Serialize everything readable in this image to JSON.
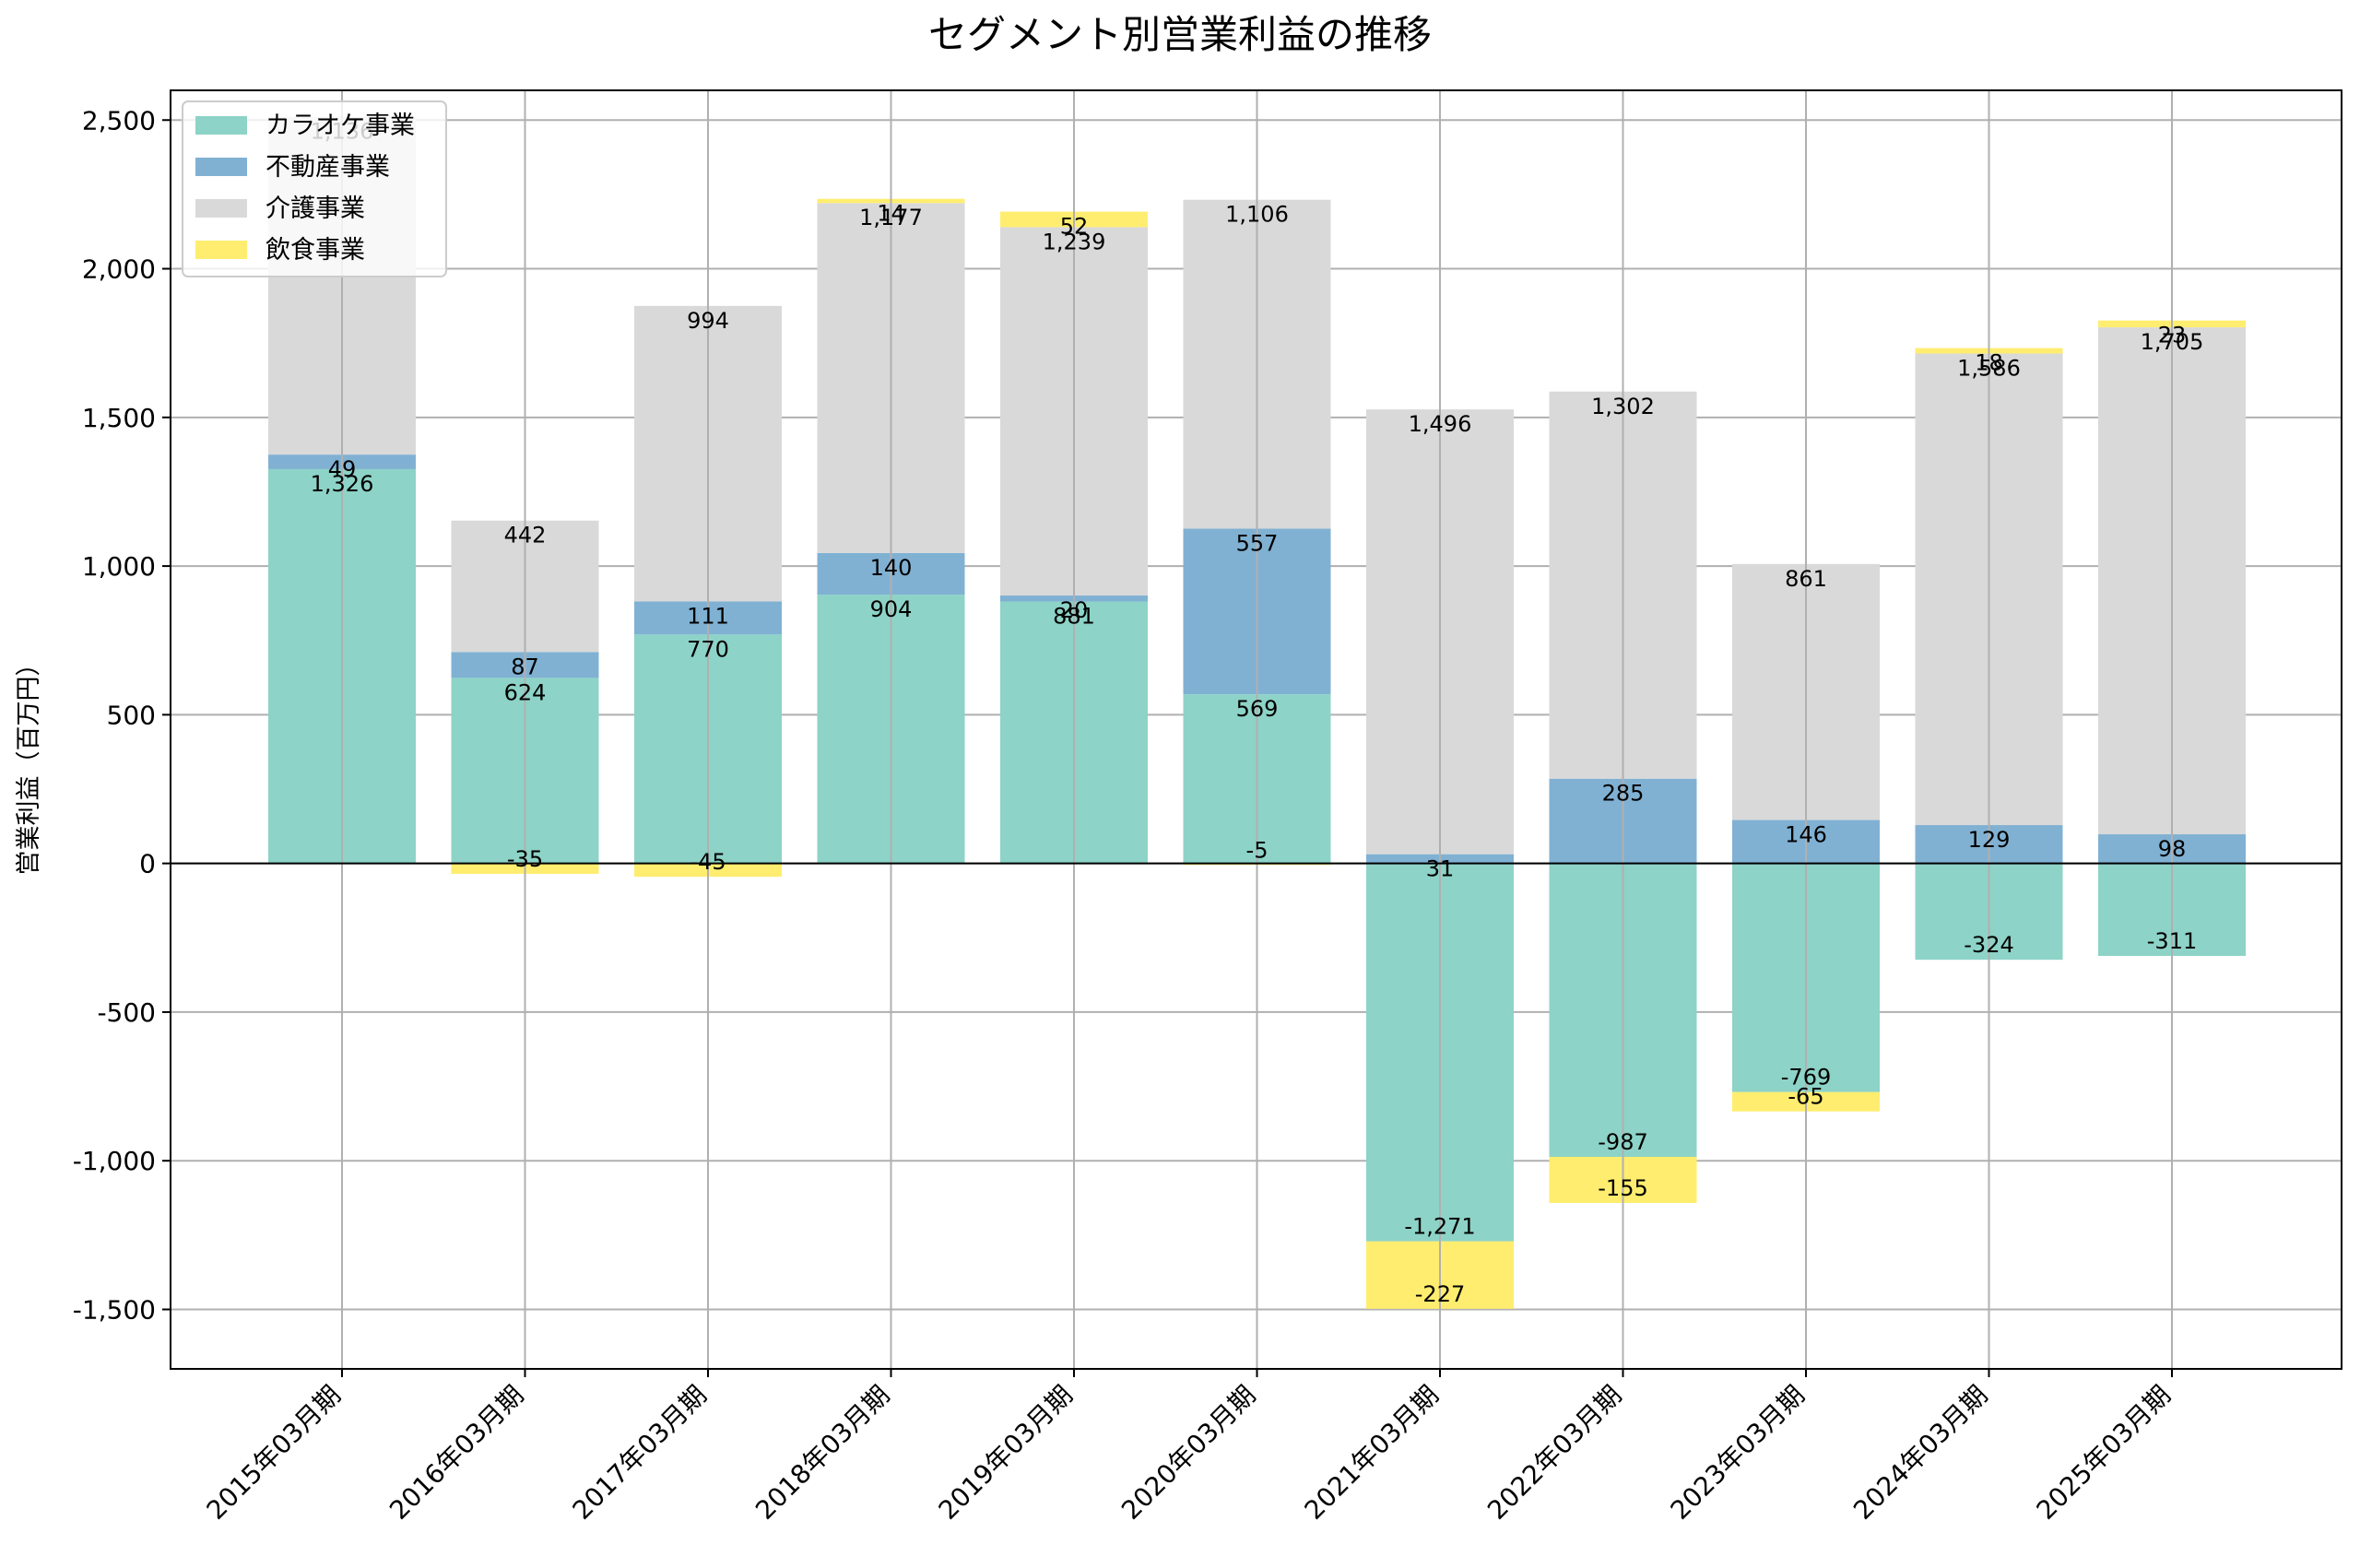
{
  "chart_data": {
    "type": "bar",
    "stacked": true,
    "title": "セグメント別営業利益の推移",
    "xlabel": "",
    "ylabel": "営業利益（百万円）",
    "ylim": [
      -1700,
      2600
    ],
    "yticks": [
      -1500,
      -1000,
      -500,
      0,
      500,
      1000,
      1500,
      2000,
      2500
    ],
    "ytick_labels": [
      "-1,500",
      "-1,000",
      "-500",
      "0",
      "500",
      "1,000",
      "1,500",
      "2,000",
      "2,500"
    ],
    "grid": true,
    "legend_position": "top-left",
    "categories": [
      "2015年03月期",
      "2016年03月期",
      "2017年03月期",
      "2018年03月期",
      "2019年03月期",
      "2020年03月期",
      "2021年03月期",
      "2022年03月期",
      "2023年03月期",
      "2024年03月期",
      "2025年03月期"
    ],
    "series": [
      {
        "name": "カラオケ事業",
        "color": "#8dd3c7",
        "values": [
          1326,
          624,
          770,
          904,
          881,
          569,
          -1271,
          -987,
          -769,
          -324,
          -311
        ]
      },
      {
        "name": "不動産事業",
        "color": "#80b1d3",
        "values": [
          49,
          87,
          111,
          140,
          20,
          557,
          31,
          285,
          146,
          129,
          98
        ]
      },
      {
        "name": "介護事業",
        "color": "#d9d9d9",
        "values": [
          1136,
          442,
          994,
          1177,
          1239,
          1106,
          1496,
          1302,
          861,
          1586,
          1705
        ]
      },
      {
        "name": "飲食事業",
        "color": "#ffed6f",
        "values": [
          0,
          -35,
          -45,
          14,
          52,
          -5,
          -227,
          -155,
          -65,
          18,
          23
        ]
      }
    ]
  }
}
